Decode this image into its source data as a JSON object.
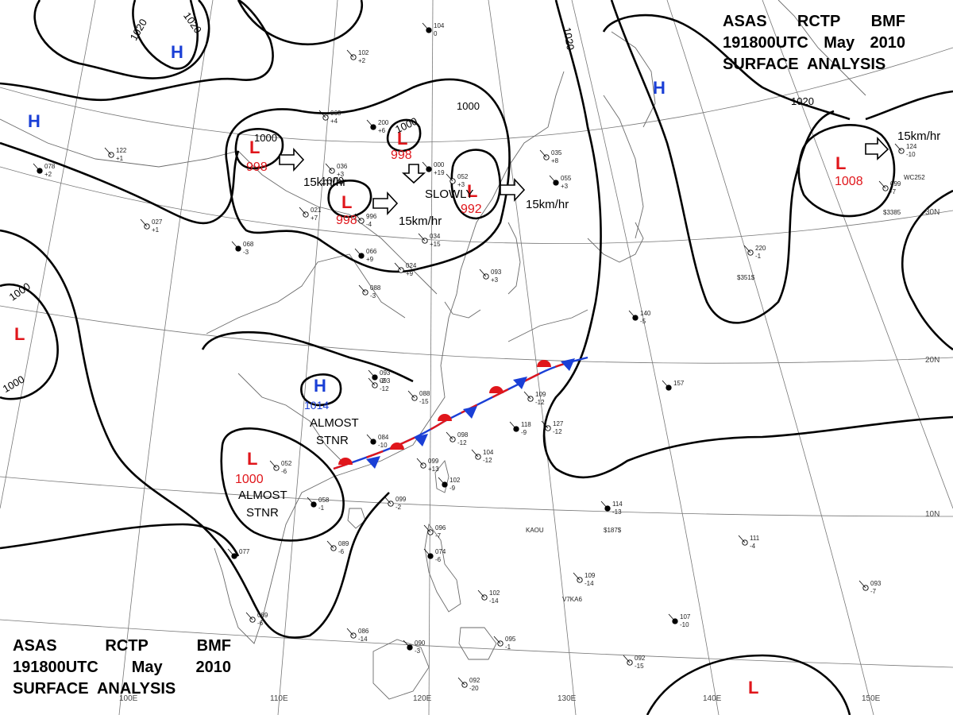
{
  "header_top": {
    "line1": [
      "ASAS",
      "RCTP",
      "BMF"
    ],
    "line2": [
      "191800UTC",
      "May",
      "2010"
    ],
    "line3": "SURFACE  ANALYSIS"
  },
  "header_bottom": {
    "line1": [
      "ASAS",
      "RCTP",
      "BMF"
    ],
    "line2": [
      "191800UTC",
      "May",
      "2010"
    ],
    "line3": "SURFACE  ANALYSIS"
  },
  "longitude_labels": [
    "100E",
    "110E",
    "120E",
    "130E",
    "140E",
    "150E"
  ],
  "latitude_labels": [
    "30N",
    "20N",
    "10N"
  ],
  "isobar_labels": [
    "1020",
    "1020",
    "1020",
    "1000",
    "1000",
    "1000",
    "1000",
    "1000",
    "1020",
    "1000"
  ],
  "pressure_systems": [
    {
      "letter": "H",
      "value": "",
      "color": "#1a3fd6"
    },
    {
      "letter": "H",
      "value": "",
      "color": "#1a3fd6"
    },
    {
      "letter": "H",
      "value": "",
      "color": "#1a3fd6"
    },
    {
      "letter": "L",
      "value": "998",
      "color": "#e0161b"
    },
    {
      "letter": "L",
      "value": "998",
      "color": "#e0161b"
    },
    {
      "letter": "L",
      "value": "998",
      "color": "#e0161b"
    },
    {
      "letter": "L",
      "value": "992",
      "color": "#e0161b"
    },
    {
      "letter": "L",
      "value": "1008",
      "color": "#e0161b"
    },
    {
      "letter": "L",
      "value": "",
      "color": "#e0161b"
    },
    {
      "letter": "H",
      "value": "1014",
      "color": "#1a3fd6"
    },
    {
      "letter": "L",
      "value": "1000",
      "color": "#e0161b"
    },
    {
      "letter": "L",
      "value": "",
      "color": "#e0161b"
    }
  ],
  "movement_labels": [
    "15km/hr",
    "15km/hr",
    "15km/hr",
    "SLOWLY",
    "15km/hr"
  ],
  "movement_labels_extra": [
    "15km/hr"
  ],
  "stationary_labels": [
    "ALMOST",
    "STNR",
    "ALMOST",
    "STNR"
  ],
  "station_obs": [
    {
      "p": "104",
      "t": "0"
    },
    {
      "p": "102",
      "t": "+2"
    },
    {
      "p": "063",
      "t": "+4"
    },
    {
      "p": "200",
      "t": "+6"
    },
    {
      "p": "036",
      "t": "+3"
    },
    {
      "p": "122",
      "t": "+1"
    },
    {
      "p": "078",
      "t": "+2"
    },
    {
      "p": "021",
      "t": "+7"
    },
    {
      "p": "996",
      "t": "-4"
    },
    {
      "p": "000",
      "t": "+19"
    },
    {
      "p": "035",
      "t": "+8"
    },
    {
      "p": "034",
      "t": "+15"
    },
    {
      "p": "066",
      "t": "+9"
    },
    {
      "p": "024",
      "t": "+9"
    },
    {
      "p": "088",
      "t": "-3"
    },
    {
      "p": "093",
      "t": "-2"
    },
    {
      "p": "093",
      "t": "-12"
    },
    {
      "p": "088",
      "t": "-15"
    },
    {
      "p": "084",
      "t": "-10"
    },
    {
      "p": "098",
      "t": "-12"
    },
    {
      "p": "099",
      "t": "+13"
    },
    {
      "p": "102",
      "t": "-9"
    },
    {
      "p": "104",
      "t": "-12"
    },
    {
      "p": "109",
      "t": "-12"
    },
    {
      "p": "118",
      "t": "-9"
    },
    {
      "p": "127",
      "t": "-12"
    },
    {
      "p": "052",
      "t": "-6"
    },
    {
      "p": "058",
      "t": "-1"
    },
    {
      "p": "099",
      "t": "-2"
    },
    {
      "p": "089",
      "t": "-6"
    },
    {
      "p": "077",
      "t": ""
    },
    {
      "p": "089",
      "t": "-6"
    },
    {
      "p": "096",
      "t": "-7"
    },
    {
      "p": "074",
      "t": "-6"
    },
    {
      "p": "102",
      "t": "-14"
    },
    {
      "p": "086",
      "t": "-14"
    },
    {
      "p": "090",
      "t": "-3"
    },
    {
      "p": "095",
      "t": "-1"
    },
    {
      "p": "092",
      "t": "-20"
    },
    {
      "p": "114",
      "t": "-13"
    },
    {
      "p": "109",
      "t": "-14"
    },
    {
      "p": "111",
      "t": "-4"
    },
    {
      "p": "107",
      "t": "-10"
    },
    {
      "p": "092",
      "t": "-15"
    },
    {
      "p": "093",
      "t": "-7"
    },
    {
      "p": "157",
      "t": ""
    },
    {
      "p": "220",
      "t": "-1"
    },
    {
      "p": "124",
      "t": "-10"
    },
    {
      "p": "140",
      "t": "-5"
    },
    {
      "p": "099",
      "t": "-7"
    },
    {
      "p": "027",
      "t": "+1"
    },
    {
      "p": "068",
      "t": "-3"
    },
    {
      "p": "093",
      "t": "+3"
    },
    {
      "p": "052",
      "t": "+3"
    },
    {
      "p": "055",
      "t": "+3"
    }
  ],
  "station_ids": [
    "KAOU",
    "V7KA6",
    "$187$",
    "$351$",
    "WC252",
    "$3385"
  ]
}
